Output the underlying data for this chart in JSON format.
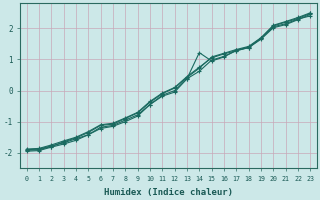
{
  "xlabel": "Humidex (Indice chaleur)",
  "ylabel": "",
  "bg_color": "#cce8e8",
  "grid_color": "#c8a8b8",
  "line_color": "#1a6a60",
  "xlim": [
    -0.5,
    23.5
  ],
  "ylim": [
    -2.5,
    2.8
  ],
  "xticks": [
    0,
    1,
    2,
    3,
    4,
    5,
    6,
    7,
    8,
    9,
    10,
    11,
    12,
    13,
    14,
    15,
    16,
    17,
    18,
    19,
    20,
    21,
    22,
    23
  ],
  "yticks": [
    -2,
    -1,
    0,
    1,
    2
  ],
  "series": [
    [
      0,
      1,
      2,
      3,
      4,
      5,
      6,
      7,
      8,
      9,
      10,
      11,
      12,
      13,
      14,
      15,
      16,
      17,
      18,
      19,
      20,
      21,
      22,
      23
    ],
    [
      -1.9,
      -1.88,
      -1.78,
      -1.68,
      -1.55,
      -1.42,
      -1.22,
      -1.15,
      -1.0,
      -0.82,
      -0.45,
      -0.18,
      -0.05,
      0.38,
      0.62,
      0.98,
      1.1,
      1.28,
      1.38,
      1.68,
      2.05,
      2.15,
      2.3,
      2.4
    ],
    [
      -1.92,
      -1.9,
      -1.8,
      -1.65,
      -1.52,
      -1.35,
      -1.12,
      -1.08,
      -0.9,
      -0.72,
      -0.38,
      -0.1,
      0.08,
      0.42,
      0.72,
      1.08,
      1.2,
      1.32,
      1.42,
      1.7,
      2.1,
      2.22,
      2.35,
      2.5
    ],
    [
      -1.95,
      -1.93,
      -1.82,
      -1.72,
      -1.6,
      -1.42,
      -1.18,
      -1.12,
      -0.95,
      -0.78,
      -0.45,
      -0.15,
      0.0,
      0.38,
      1.22,
      0.95,
      1.08,
      1.3,
      1.38,
      1.65,
      2.02,
      2.12,
      2.28,
      2.45
    ],
    [
      -1.88,
      -1.86,
      -1.75,
      -1.62,
      -1.5,
      -1.32,
      -1.1,
      -1.05,
      -0.88,
      -0.7,
      -0.35,
      -0.08,
      0.1,
      0.45,
      0.75,
      1.05,
      1.18,
      1.28,
      1.4,
      1.68,
      2.08,
      2.2,
      2.32,
      2.48
    ]
  ]
}
